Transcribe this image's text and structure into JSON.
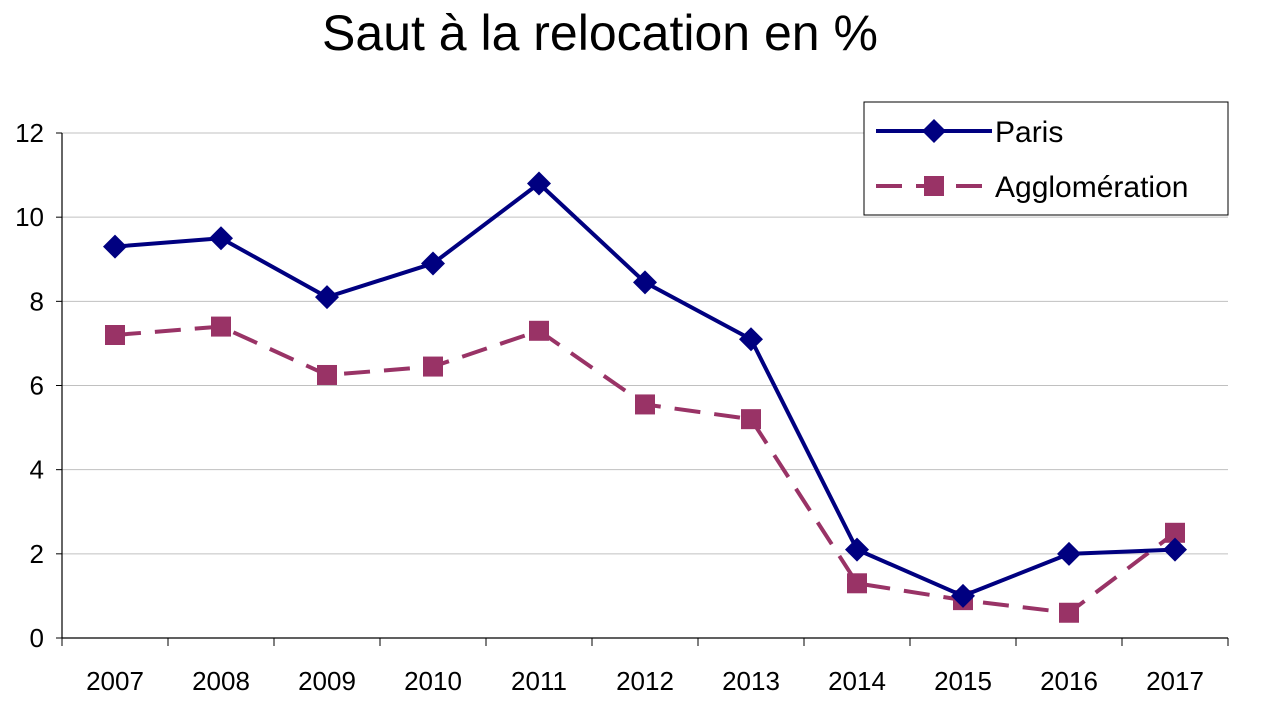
{
  "chart_data": {
    "type": "line",
    "title": "Saut à la relocation en %",
    "xlabel": "",
    "ylabel": "",
    "categories": [
      "2007",
      "2008",
      "2009",
      "2010",
      "2011",
      "2012",
      "2013",
      "2014",
      "2015",
      "2016",
      "2017"
    ],
    "ylim": [
      0,
      12
    ],
    "yticks": [
      0,
      2,
      4,
      6,
      8,
      10,
      12
    ],
    "grid": "horizontal",
    "legend_position": "top-right",
    "series": [
      {
        "name": "Paris",
        "color": "#000080",
        "style": "solid",
        "marker": "diamond",
        "values": [
          9.3,
          9.5,
          8.1,
          8.9,
          10.8,
          8.45,
          7.1,
          2.1,
          1.0,
          2.0,
          2.1
        ]
      },
      {
        "name": "Agglomération",
        "color": "#993366",
        "style": "dashed",
        "marker": "square",
        "values": [
          7.2,
          7.4,
          6.25,
          6.45,
          7.3,
          5.55,
          5.2,
          1.3,
          0.9,
          0.6,
          2.5
        ]
      }
    ]
  }
}
